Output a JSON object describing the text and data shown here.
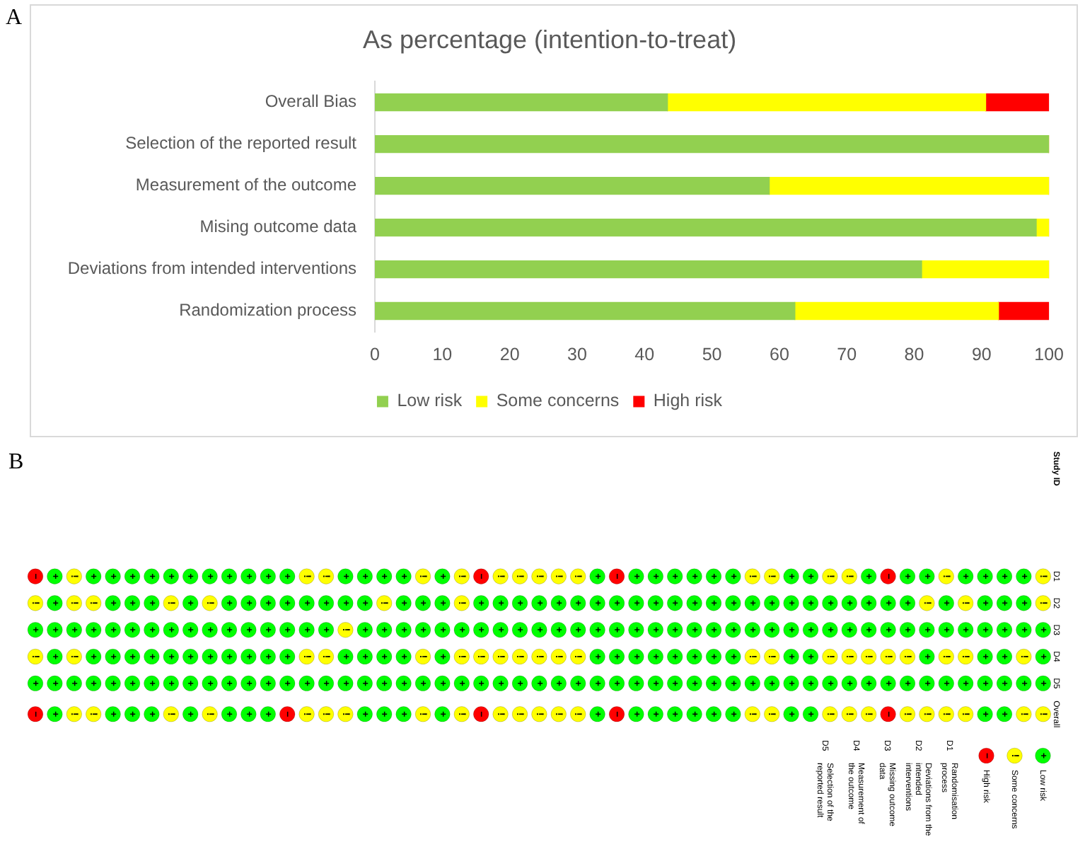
{
  "chart_data": [
    {
      "type": "bar",
      "orientation": "horizontal",
      "stacked": true,
      "title": "As percentage (intention-to-treat)",
      "annotations": [
        "A"
      ],
      "categories": [
        "Overall Bias",
        "Selection of the reported result",
        "Measurement of the outcome",
        "Mising outcome data",
        "Deviations from intended interventions",
        "Randomization process"
      ],
      "series": [
        {
          "name": "Low risk",
          "color": "#92d050",
          "values": [
            43.4,
            100,
            58.5,
            98.1,
            81.1,
            62.3
          ]
        },
        {
          "name": "Some concerns",
          "color": "#ffff00",
          "values": [
            47.2,
            0,
            41.5,
            1.9,
            18.9,
            30.2
          ]
        },
        {
          "name": "High risk",
          "color": "#ff0000",
          "values": [
            9.4,
            0,
            0,
            0,
            0,
            7.5
          ]
        }
      ],
      "xlim": [
        0,
        100
      ],
      "xticks": [
        0,
        10,
        20,
        30,
        40,
        50,
        60,
        70,
        80,
        90,
        100
      ],
      "legend": "bottom"
    },
    {
      "type": "other",
      "xlabel": "Study ID",
      "annotations": [
        "B",
        "D5",
        "Selection of the reported result",
        "D4",
        "Measurement of the outcome",
        "D3",
        "Missing outcome data",
        "D2",
        "Deviations from the intended interventions",
        "D1",
        "Randomisation process"
      ],
      "categories": [
        null,
        null,
        null,
        null,
        null,
        null,
        null,
        null,
        null,
        null,
        null,
        null,
        null,
        null,
        null,
        null,
        null,
        null,
        null,
        null,
        null,
        null,
        null,
        null,
        null,
        null,
        null,
        null,
        null,
        null,
        null,
        null,
        null,
        null,
        null,
        null,
        null,
        null,
        null,
        null,
        null,
        null,
        null,
        null,
        null,
        null,
        null,
        null,
        null,
        null,
        null,
        null,
        null
      ],
      "y_categories": [
        "D1",
        "D2",
        "D3",
        "D4",
        "D5",
        "Overall"
      ],
      "cell_labels": [
        [
          "−",
          "+",
          "!",
          "+",
          "+",
          "+",
          "+",
          "+",
          "+",
          "+",
          "+",
          "+",
          "+",
          "+",
          "!",
          "!",
          "+",
          "+",
          "+",
          "+",
          "!",
          "+",
          "!",
          "−",
          "!",
          "!",
          "!",
          "!",
          "!",
          "+",
          "−",
          "+",
          "+",
          "+",
          "+",
          "+",
          "+",
          "!",
          "!",
          "+",
          "+",
          "!",
          "!",
          "+",
          "−",
          "+",
          "+",
          "!",
          "+",
          "+",
          "+",
          "+",
          "!"
        ],
        [
          "!",
          "+",
          "!",
          "!",
          "+",
          "+",
          "+",
          "!",
          "+",
          "!",
          "+",
          "+",
          "+",
          "+",
          "+",
          "+",
          "+",
          "+",
          "!",
          "+",
          "+",
          "+",
          "!",
          "+",
          "+",
          "+",
          "+",
          "+",
          "+",
          "+",
          "+",
          "+",
          "+",
          "+",
          "+",
          "+",
          "+",
          "+",
          "+",
          "+",
          "+",
          "+",
          "+",
          "+",
          "+",
          "+",
          "!",
          "+",
          "!",
          "+",
          "+",
          "+",
          "!"
        ],
        [
          "+",
          "+",
          "+",
          "+",
          "+",
          "+",
          "+",
          "+",
          "+",
          "+",
          "+",
          "+",
          "+",
          "+",
          "+",
          "+",
          "!",
          "+",
          "+",
          "+",
          "+",
          "+",
          "+",
          "+",
          "+",
          "+",
          "+",
          "+",
          "+",
          "+",
          "+",
          "+",
          "+",
          "+",
          "+",
          "+",
          "+",
          "+",
          "+",
          "+",
          "+",
          "+",
          "+",
          "+",
          "+",
          "+",
          "+",
          "+",
          "+",
          "+",
          "+",
          "+",
          "+"
        ],
        [
          "!",
          "+",
          "!",
          "+",
          "+",
          "+",
          "+",
          "+",
          "+",
          "+",
          "+",
          "+",
          "+",
          "+",
          "!",
          "!",
          "+",
          "+",
          "+",
          "+",
          "!",
          "+",
          "!",
          "!",
          "!",
          "!",
          "!",
          "!",
          "!",
          "+",
          "+",
          "+",
          "+",
          "+",
          "+",
          "+",
          "+",
          "!",
          "!",
          "+",
          "+",
          "!",
          "!",
          "!",
          "!",
          "!",
          "+",
          "!",
          "!",
          "+",
          "+",
          "!",
          "+"
        ],
        [
          "+",
          "+",
          "+",
          "+",
          "+",
          "+",
          "+",
          "+",
          "+",
          "+",
          "+",
          "+",
          "+",
          "+",
          "+",
          "+",
          "+",
          "+",
          "+",
          "+",
          "+",
          "+",
          "+",
          "+",
          "+",
          "+",
          "+",
          "+",
          "+",
          "+",
          "+",
          "+",
          "+",
          "+",
          "+",
          "+",
          "+",
          "+",
          "+",
          "+",
          "+",
          "+",
          "+",
          "+",
          "+",
          "+",
          "+",
          "+",
          "+",
          "+",
          "+",
          "+",
          "+"
        ],
        [
          "−",
          "+",
          "!",
          "!",
          "+",
          "+",
          "+",
          "!",
          "+",
          "!",
          "+",
          "+",
          "+",
          "−",
          "!",
          "!",
          "!",
          "+",
          "+",
          "+",
          "!",
          "+",
          "!",
          "−",
          "!",
          "!",
          "!",
          "!",
          "!",
          "+",
          "−",
          "+",
          "+",
          "+",
          "+",
          "+",
          "+",
          "!",
          "!",
          "+",
          "+",
          "!",
          "!",
          "!",
          "−",
          "!",
          "!",
          "!",
          "!",
          "+",
          "+",
          "!",
          "!"
        ]
      ],
      "colors": [
        [
          "#ff0000",
          "#00ff00",
          "#ffff00",
          "#00ff00",
          "#00ff00",
          "#00ff00",
          "#00ff00",
          "#00ff00",
          "#00ff00",
          "#00ff00",
          "#00ff00",
          "#00ff00",
          "#00ff00",
          "#00ff00",
          "#ffff00",
          "#ffff00",
          "#00ff00",
          "#00ff00",
          "#00ff00",
          "#00ff00",
          "#ffff00",
          "#00ff00",
          "#ffff00",
          "#ff0000",
          "#ffff00",
          "#ffff00",
          "#ffff00",
          "#ffff00",
          "#ffff00",
          "#00ff00",
          "#ff0000",
          "#00ff00",
          "#00ff00",
          "#00ff00",
          "#00ff00",
          "#00ff00",
          "#00ff00",
          "#ffff00",
          "#ffff00",
          "#00ff00",
          "#00ff00",
          "#ffff00",
          "#ffff00",
          "#00ff00",
          "#ff0000",
          "#00ff00",
          "#00ff00",
          "#ffff00",
          "#00ff00",
          "#00ff00",
          "#00ff00",
          "#00ff00",
          "#ffff00"
        ],
        [
          "#ffff00",
          "#00ff00",
          "#ffff00",
          "#ffff00",
          "#00ff00",
          "#00ff00",
          "#00ff00",
          "#ffff00",
          "#00ff00",
          "#ffff00",
          "#00ff00",
          "#00ff00",
          "#00ff00",
          "#00ff00",
          "#00ff00",
          "#00ff00",
          "#00ff00",
          "#00ff00",
          "#ffff00",
          "#00ff00",
          "#00ff00",
          "#00ff00",
          "#ffff00",
          "#00ff00",
          "#00ff00",
          "#00ff00",
          "#00ff00",
          "#00ff00",
          "#00ff00",
          "#00ff00",
          "#00ff00",
          "#00ff00",
          "#00ff00",
          "#00ff00",
          "#00ff00",
          "#00ff00",
          "#00ff00",
          "#00ff00",
          "#00ff00",
          "#00ff00",
          "#00ff00",
          "#00ff00",
          "#00ff00",
          "#00ff00",
          "#00ff00",
          "#00ff00",
          "#ffff00",
          "#00ff00",
          "#ffff00",
          "#00ff00",
          "#00ff00",
          "#00ff00",
          "#ffff00"
        ],
        [
          "#00ff00",
          "#00ff00",
          "#00ff00",
          "#00ff00",
          "#00ff00",
          "#00ff00",
          "#00ff00",
          "#00ff00",
          "#00ff00",
          "#00ff00",
          "#00ff00",
          "#00ff00",
          "#00ff00",
          "#00ff00",
          "#00ff00",
          "#00ff00",
          "#ffff00",
          "#00ff00",
          "#00ff00",
          "#00ff00",
          "#00ff00",
          "#00ff00",
          "#00ff00",
          "#00ff00",
          "#00ff00",
          "#00ff00",
          "#00ff00",
          "#00ff00",
          "#00ff00",
          "#00ff00",
          "#00ff00",
          "#00ff00",
          "#00ff00",
          "#00ff00",
          "#00ff00",
          "#00ff00",
          "#00ff00",
          "#00ff00",
          "#00ff00",
          "#00ff00",
          "#00ff00",
          "#00ff00",
          "#00ff00",
          "#00ff00",
          "#00ff00",
          "#00ff00",
          "#00ff00",
          "#00ff00",
          "#00ff00",
          "#00ff00",
          "#00ff00",
          "#00ff00",
          "#00ff00"
        ],
        [
          "#ffff00",
          "#00ff00",
          "#ffff00",
          "#00ff00",
          "#00ff00",
          "#00ff00",
          "#00ff00",
          "#00ff00",
          "#00ff00",
          "#00ff00",
          "#00ff00",
          "#00ff00",
          "#00ff00",
          "#00ff00",
          "#ffff00",
          "#ffff00",
          "#00ff00",
          "#00ff00",
          "#00ff00",
          "#00ff00",
          "#ffff00",
          "#00ff00",
          "#ffff00",
          "#ffff00",
          "#ffff00",
          "#ffff00",
          "#ffff00",
          "#ffff00",
          "#ffff00",
          "#00ff00",
          "#00ff00",
          "#00ff00",
          "#00ff00",
          "#00ff00",
          "#00ff00",
          "#00ff00",
          "#00ff00",
          "#ffff00",
          "#ffff00",
          "#00ff00",
          "#00ff00",
          "#ffff00",
          "#ffff00",
          "#ffff00",
          "#ffff00",
          "#ffff00",
          "#00ff00",
          "#ffff00",
          "#ffff00",
          "#00ff00",
          "#00ff00",
          "#ffff00",
          "#00ff00"
        ],
        [
          "#00ff00",
          "#00ff00",
          "#00ff00",
          "#00ff00",
          "#00ff00",
          "#00ff00",
          "#00ff00",
          "#00ff00",
          "#00ff00",
          "#00ff00",
          "#00ff00",
          "#00ff00",
          "#00ff00",
          "#00ff00",
          "#00ff00",
          "#00ff00",
          "#00ff00",
          "#00ff00",
          "#00ff00",
          "#00ff00",
          "#00ff00",
          "#00ff00",
          "#00ff00",
          "#00ff00",
          "#00ff00",
          "#00ff00",
          "#00ff00",
          "#00ff00",
          "#00ff00",
          "#00ff00",
          "#00ff00",
          "#00ff00",
          "#00ff00",
          "#00ff00",
          "#00ff00",
          "#00ff00",
          "#00ff00",
          "#00ff00",
          "#00ff00",
          "#00ff00",
          "#00ff00",
          "#00ff00",
          "#00ff00",
          "#00ff00",
          "#00ff00",
          "#00ff00",
          "#00ff00",
          "#00ff00",
          "#00ff00",
          "#00ff00",
          "#00ff00",
          "#00ff00",
          "#00ff00"
        ],
        [
          "#ff0000",
          "#00ff00",
          "#ffff00",
          "#ffff00",
          "#00ff00",
          "#00ff00",
          "#00ff00",
          "#ffff00",
          "#00ff00",
          "#ffff00",
          "#00ff00",
          "#00ff00",
          "#00ff00",
          "#ff0000",
          "#ffff00",
          "#ffff00",
          "#ffff00",
          "#00ff00",
          "#00ff00",
          "#00ff00",
          "#ffff00",
          "#00ff00",
          "#ffff00",
          "#ff0000",
          "#ffff00",
          "#ffff00",
          "#ffff00",
          "#ffff00",
          "#ffff00",
          "#00ff00",
          "#ff0000",
          "#00ff00",
          "#00ff00",
          "#00ff00",
          "#00ff00",
          "#00ff00",
          "#00ff00",
          "#ffff00",
          "#ffff00",
          "#00ff00",
          "#00ff00",
          "#ffff00",
          "#ffff00",
          "#ffff00",
          "#ff0000",
          "#ffff00",
          "#ffff00",
          "#ffff00",
          "#ffff00",
          "#00ff00",
          "#00ff00",
          "#ffff00",
          "#ffff00"
        ]
      ],
      "series": [
        {
          "name": "High risk",
          "color": "#ff0000",
          "values": [
            null,
            null,
            null,
            null,
            null,
            null,
            null,
            null,
            null,
            null,
            null,
            null,
            null,
            null,
            null,
            null,
            null,
            null,
            null,
            null,
            null,
            null,
            null,
            null,
            null,
            null,
            null,
            null,
            null,
            null,
            null,
            null,
            null,
            null,
            null,
            null,
            null,
            null,
            null,
            null,
            null,
            null,
            null,
            null,
            null,
            null,
            null,
            null,
            null,
            null,
            null,
            null,
            null
          ]
        },
        {
          "name": "Some concerns",
          "color": "#ffff00",
          "values": [
            null,
            null,
            null,
            null,
            null,
            null,
            null,
            null,
            null,
            null,
            null,
            null,
            null,
            null,
            null,
            null,
            null,
            null,
            null,
            null,
            null,
            null,
            null,
            null,
            null,
            null,
            null,
            null,
            null,
            null,
            null,
            null,
            null,
            null,
            null,
            null,
            null,
            null,
            null,
            null,
            null,
            null,
            null,
            null,
            null,
            null,
            null,
            null,
            null,
            null,
            null,
            null,
            null
          ]
        },
        {
          "name": "Low risk",
          "color": "#00ff00",
          "values": [
            null,
            null,
            null,
            null,
            null,
            null,
            null,
            null,
            null,
            null,
            null,
            null,
            null,
            null,
            null,
            null,
            null,
            null,
            null,
            null,
            null,
            null,
            null,
            null,
            null,
            null,
            null,
            null,
            null,
            null,
            null,
            null,
            null,
            null,
            null,
            null,
            null,
            null,
            null,
            null,
            null,
            null,
            null,
            null,
            null,
            null,
            null,
            null,
            null,
            null,
            null,
            null,
            null
          ]
        }
      ],
      "legend": "bottom right"
    }
  ]
}
